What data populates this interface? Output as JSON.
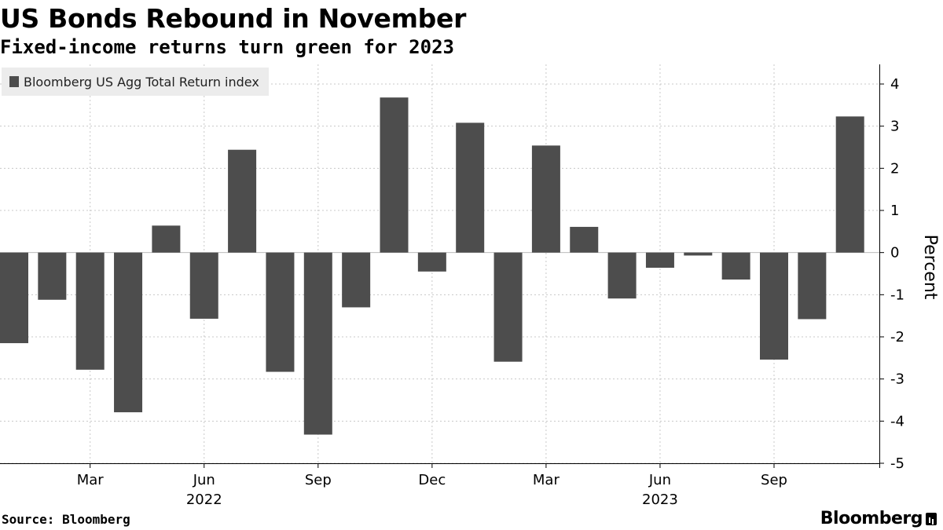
{
  "title": "US Bonds Rebound in November",
  "subtitle": "Fixed-income returns turn green for 2023",
  "footer": {
    "source": "Source: Bloomberg",
    "brand": "Bloomberg"
  },
  "colors": {
    "bar": "#4d4d4d",
    "grid": "#c8c8c8",
    "axis": "#000000"
  },
  "chart_data": {
    "type": "bar",
    "categories": [
      "2022-01",
      "2022-02",
      "2022-03",
      "2022-04",
      "2022-05",
      "2022-06",
      "2022-07",
      "2022-08",
      "2022-09",
      "2022-10",
      "2022-11",
      "2022-12",
      "2023-01",
      "2023-02",
      "2023-03",
      "2023-04",
      "2023-05",
      "2023-06",
      "2023-07",
      "2023-08",
      "2023-09",
      "2023-10",
      "2023-11"
    ],
    "series": [
      {
        "name": "Bloomberg US Agg Total Return index",
        "values": [
          -2.15,
          -1.12,
          -2.78,
          -3.79,
          0.64,
          -1.57,
          2.44,
          -2.83,
          -4.32,
          -1.3,
          3.68,
          -0.45,
          3.08,
          -2.59,
          2.54,
          0.61,
          -1.09,
          -0.36,
          -0.07,
          -0.64,
          -2.54,
          -1.58,
          3.23
        ]
      }
    ],
    "ylabel": "Percent",
    "ylim": [
      -5,
      4
    ],
    "yticks": [
      4,
      3,
      2,
      1,
      0,
      -1,
      -2,
      -3,
      -4,
      -5
    ],
    "ytick_labels": [
      "4",
      "3",
      "2",
      "1",
      "0",
      "-1",
      "-2",
      "-3",
      "-4",
      "-5"
    ],
    "xticks": [
      {
        "index": 2,
        "label": "Mar"
      },
      {
        "index": 5,
        "label": "Jun"
      },
      {
        "index": 8,
        "label": "Sep"
      },
      {
        "index": 11,
        "label": "Dec"
      },
      {
        "index": 14,
        "label": "Mar"
      },
      {
        "index": 17,
        "label": "Jun"
      },
      {
        "index": 20,
        "label": "Sep"
      }
    ],
    "year_labels": [
      {
        "index": 5,
        "label": "2022"
      },
      {
        "index": 17,
        "label": "2023"
      }
    ],
    "y_axis_side": "right",
    "grid": true,
    "legend": "top-left"
  }
}
